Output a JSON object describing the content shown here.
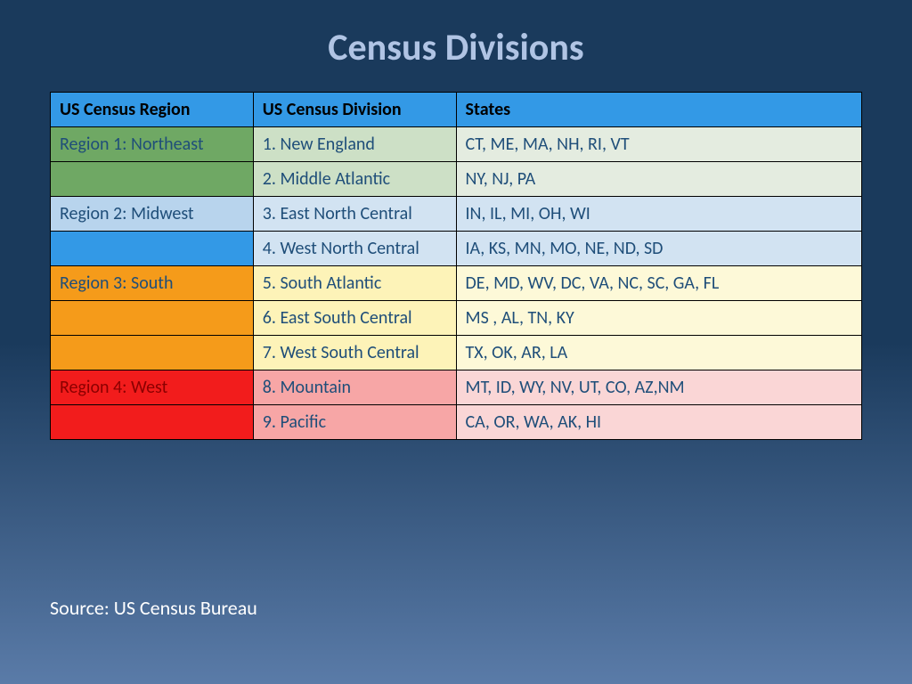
{
  "title": "Census Divisions",
  "source": "Source: US Census Bureau",
  "table": {
    "header": {
      "bg": "#3399e6",
      "cols": [
        "US Census Region",
        "US Census Division",
        "States"
      ]
    },
    "col_widths": [
      "25%",
      "25%",
      "50%"
    ],
    "rows": [
      {
        "region": "Region 1: Northeast",
        "region_bg": "#6fa864",
        "region_text": "#1f4e79",
        "div": "1. New England",
        "div_bg": "#cde0c6",
        "div_text": "#1f4e79",
        "states": "CT, ME, MA, NH, RI, VT",
        "states_bg": "#e4ece0",
        "states_text": "#1f4e79"
      },
      {
        "region": "",
        "region_bg": "#6fa864",
        "region_text": "#1f4e79",
        "div": "2. Middle Atlantic",
        "div_bg": "#cde0c6",
        "div_text": "#1f4e79",
        "states": "NY, NJ, PA",
        "states_bg": "#e4ece0",
        "states_text": "#1f4e79"
      },
      {
        "region": "Region 2: Midwest",
        "region_bg": "#b8d4ed",
        "region_text": "#1f4e79",
        "div": "3. East North Central",
        "div_bg": "#d2e3f2",
        "div_text": "#1f4e79",
        "states": "IN, IL,  MI, OH, WI",
        "states_bg": "#d2e3f2",
        "states_text": "#1f4e79"
      },
      {
        "region": "",
        "region_bg": "#3399e6",
        "region_text": "#1f4e79",
        "div": "4. West North Central",
        "div_bg": "#d2e3f2",
        "div_text": "#1f4e79",
        "states": "IA, KS, MN, MO, NE, ND, SD",
        "states_bg": "#d2e3f2",
        "states_text": "#1f4e79"
      },
      {
        "region": "Region 3:  South",
        "region_bg": "#f59b1a",
        "region_text": "#1f4e79",
        "div": "5. South Atlantic",
        "div_bg": "#fdf3b8",
        "div_text": "#1f4e79",
        "states": "DE, MD, WV, DC, VA, NC, SC, GA, FL",
        "states_bg": "#fdf9d8",
        "states_text": "#1f4e79"
      },
      {
        "region": "",
        "region_bg": "#f59b1a",
        "region_text": "#1f4e79",
        "div": "6. East South Central",
        "div_bg": "#fdf3b8",
        "div_text": "#1f4e79",
        "states": "MS , AL, TN, KY",
        "states_bg": "#fdf9d8",
        "states_text": "#1f4e79"
      },
      {
        "region": "",
        "region_bg": "#f59b1a",
        "region_text": "#1f4e79",
        "div": "7. West South Central",
        "div_bg": "#fdf3b8",
        "div_text": "#1f4e79",
        "states": "TX, OK, AR, LA",
        "states_bg": "#fdf9d8",
        "states_text": "#1f4e79"
      },
      {
        "region": "Region 4: West",
        "region_bg": "#f21c1c",
        "region_text": "#8b0000",
        "div": "8. Mountain",
        "div_bg": "#f7a6a6",
        "div_text": "#1f4e79",
        "states": "MT, ID, WY, NV, UT, CO, AZ,NM",
        "states_bg": "#fad6d6",
        "states_text": "#1f4e79"
      },
      {
        "region": "",
        "region_bg": "#f21c1c",
        "region_text": "#1f4e79",
        "div": "9. Pacific",
        "div_bg": "#f7a6a6",
        "div_text": "#1f4e79",
        "states": "CA, OR, WA, AK, HI",
        "states_bg": "#fad6d6",
        "states_text": "#1f4e79"
      }
    ]
  }
}
